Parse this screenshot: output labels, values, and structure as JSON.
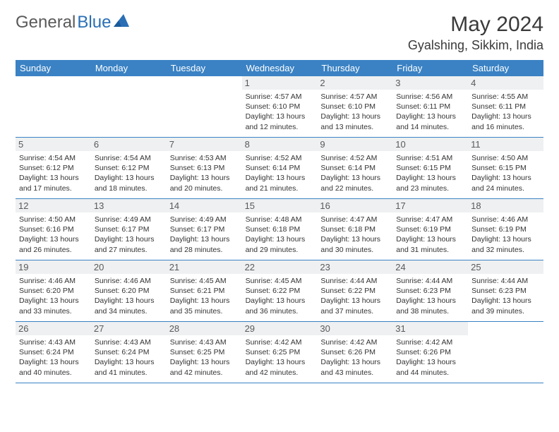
{
  "logo": {
    "part1": "General",
    "part2": "Blue"
  },
  "title": "May 2024",
  "location": "Gyalshing, Sikkim, India",
  "colors": {
    "header_bg": "#3a82c4",
    "header_text": "#ffffff",
    "daynum_bg": "#eef0f1",
    "daynum_text": "#5a5a5a",
    "body_text": "#333333",
    "row_border": "#3a82c4",
    "logo_gray": "#5a5a5a",
    "logo_blue": "#2a6fb5"
  },
  "weekdays": [
    "Sunday",
    "Monday",
    "Tuesday",
    "Wednesday",
    "Thursday",
    "Friday",
    "Saturday"
  ],
  "weeks": [
    [
      null,
      null,
      null,
      {
        "n": "1",
        "sr": "4:57 AM",
        "ss": "6:10 PM",
        "dl": "13 hours and 12 minutes."
      },
      {
        "n": "2",
        "sr": "4:57 AM",
        "ss": "6:10 PM",
        "dl": "13 hours and 13 minutes."
      },
      {
        "n": "3",
        "sr": "4:56 AM",
        "ss": "6:11 PM",
        "dl": "13 hours and 14 minutes."
      },
      {
        "n": "4",
        "sr": "4:55 AM",
        "ss": "6:11 PM",
        "dl": "13 hours and 16 minutes."
      }
    ],
    [
      {
        "n": "5",
        "sr": "4:54 AM",
        "ss": "6:12 PM",
        "dl": "13 hours and 17 minutes."
      },
      {
        "n": "6",
        "sr": "4:54 AM",
        "ss": "6:12 PM",
        "dl": "13 hours and 18 minutes."
      },
      {
        "n": "7",
        "sr": "4:53 AM",
        "ss": "6:13 PM",
        "dl": "13 hours and 20 minutes."
      },
      {
        "n": "8",
        "sr": "4:52 AM",
        "ss": "6:14 PM",
        "dl": "13 hours and 21 minutes."
      },
      {
        "n": "9",
        "sr": "4:52 AM",
        "ss": "6:14 PM",
        "dl": "13 hours and 22 minutes."
      },
      {
        "n": "10",
        "sr": "4:51 AM",
        "ss": "6:15 PM",
        "dl": "13 hours and 23 minutes."
      },
      {
        "n": "11",
        "sr": "4:50 AM",
        "ss": "6:15 PM",
        "dl": "13 hours and 24 minutes."
      }
    ],
    [
      {
        "n": "12",
        "sr": "4:50 AM",
        "ss": "6:16 PM",
        "dl": "13 hours and 26 minutes."
      },
      {
        "n": "13",
        "sr": "4:49 AM",
        "ss": "6:17 PM",
        "dl": "13 hours and 27 minutes."
      },
      {
        "n": "14",
        "sr": "4:49 AM",
        "ss": "6:17 PM",
        "dl": "13 hours and 28 minutes."
      },
      {
        "n": "15",
        "sr": "4:48 AM",
        "ss": "6:18 PM",
        "dl": "13 hours and 29 minutes."
      },
      {
        "n": "16",
        "sr": "4:47 AM",
        "ss": "6:18 PM",
        "dl": "13 hours and 30 minutes."
      },
      {
        "n": "17",
        "sr": "4:47 AM",
        "ss": "6:19 PM",
        "dl": "13 hours and 31 minutes."
      },
      {
        "n": "18",
        "sr": "4:46 AM",
        "ss": "6:19 PM",
        "dl": "13 hours and 32 minutes."
      }
    ],
    [
      {
        "n": "19",
        "sr": "4:46 AM",
        "ss": "6:20 PM",
        "dl": "13 hours and 33 minutes."
      },
      {
        "n": "20",
        "sr": "4:46 AM",
        "ss": "6:20 PM",
        "dl": "13 hours and 34 minutes."
      },
      {
        "n": "21",
        "sr": "4:45 AM",
        "ss": "6:21 PM",
        "dl": "13 hours and 35 minutes."
      },
      {
        "n": "22",
        "sr": "4:45 AM",
        "ss": "6:22 PM",
        "dl": "13 hours and 36 minutes."
      },
      {
        "n": "23",
        "sr": "4:44 AM",
        "ss": "6:22 PM",
        "dl": "13 hours and 37 minutes."
      },
      {
        "n": "24",
        "sr": "4:44 AM",
        "ss": "6:23 PM",
        "dl": "13 hours and 38 minutes."
      },
      {
        "n": "25",
        "sr": "4:44 AM",
        "ss": "6:23 PM",
        "dl": "13 hours and 39 minutes."
      }
    ],
    [
      {
        "n": "26",
        "sr": "4:43 AM",
        "ss": "6:24 PM",
        "dl": "13 hours and 40 minutes."
      },
      {
        "n": "27",
        "sr": "4:43 AM",
        "ss": "6:24 PM",
        "dl": "13 hours and 41 minutes."
      },
      {
        "n": "28",
        "sr": "4:43 AM",
        "ss": "6:25 PM",
        "dl": "13 hours and 42 minutes."
      },
      {
        "n": "29",
        "sr": "4:42 AM",
        "ss": "6:25 PM",
        "dl": "13 hours and 42 minutes."
      },
      {
        "n": "30",
        "sr": "4:42 AM",
        "ss": "6:26 PM",
        "dl": "13 hours and 43 minutes."
      },
      {
        "n": "31",
        "sr": "4:42 AM",
        "ss": "6:26 PM",
        "dl": "13 hours and 44 minutes."
      },
      null
    ]
  ],
  "labels": {
    "sunrise": "Sunrise:",
    "sunset": "Sunset:",
    "daylight": "Daylight:"
  }
}
